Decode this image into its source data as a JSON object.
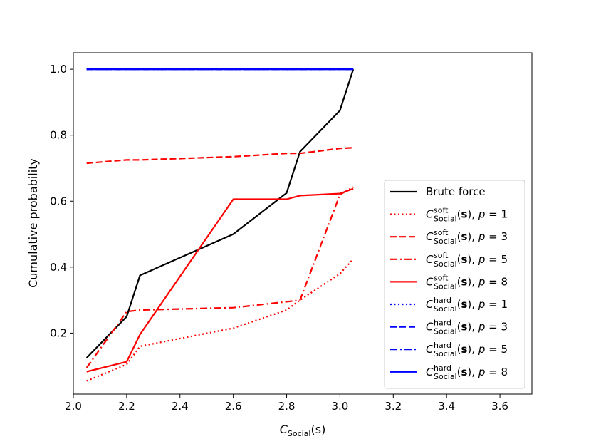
{
  "chart_data": {
    "type": "line",
    "title": "",
    "xlabel": {
      "main": "C",
      "sub": "Social",
      "tail": "(s)"
    },
    "ylabel": "Cumulative probability",
    "xlim": [
      2.0,
      3.72
    ],
    "ylim": [
      0.015,
      1.05
    ],
    "xticks": [
      "2.0",
      "2.2",
      "2.4",
      "2.6",
      "2.8",
      "3.0",
      "3.2",
      "3.4",
      "3.6"
    ],
    "yticks": [
      "0.2",
      "0.4",
      "0.6",
      "0.8",
      "1.0"
    ],
    "grid": false,
    "legend_position": "lower-right",
    "series": [
      {
        "name": "Brute force",
        "color": "#000000",
        "dash": "solid",
        "x": [
          2.05,
          2.2,
          2.25,
          2.6,
          2.8,
          2.85,
          3.0,
          3.05
        ],
        "y": [
          0.125,
          0.25,
          0.375,
          0.5,
          0.625,
          0.75,
          0.875,
          1.0
        ]
      },
      {
        "name": "soft",
        "p": "1",
        "color": "#ff0000",
        "dash": "dotted",
        "x": [
          2.05,
          2.2,
          2.25,
          2.6,
          2.8,
          2.85,
          3.0,
          3.05
        ],
        "y": [
          0.055,
          0.105,
          0.16,
          0.215,
          0.27,
          0.3,
          0.38,
          0.425
        ]
      },
      {
        "name": "soft",
        "p": "3",
        "color": "#ff0000",
        "dash": "dashed",
        "x": [
          2.05,
          2.2,
          2.25,
          2.6,
          2.8,
          2.85,
          3.0,
          3.05
        ],
        "y": [
          0.715,
          0.725,
          0.725,
          0.735,
          0.745,
          0.745,
          0.76,
          0.762
        ]
      },
      {
        "name": "soft",
        "p": "5",
        "color": "#ff0000",
        "dash": "dashdot",
        "x": [
          2.05,
          2.2,
          2.25,
          2.6,
          2.8,
          2.85,
          3.0,
          3.05
        ],
        "y": [
          0.095,
          0.265,
          0.27,
          0.277,
          0.295,
          0.3,
          0.62,
          0.643
        ]
      },
      {
        "name": "soft",
        "p": "8",
        "color": "#ff0000",
        "dash": "solid",
        "x": [
          2.05,
          2.2,
          2.25,
          2.6,
          2.8,
          2.85,
          3.0,
          3.05
        ],
        "y": [
          0.083,
          0.113,
          0.196,
          0.606,
          0.606,
          0.617,
          0.623,
          0.638
        ]
      },
      {
        "name": "hard",
        "p": "1",
        "color": "#0000ff",
        "dash": "dotted",
        "x": [
          2.05,
          3.05
        ],
        "y": [
          1.0,
          1.0
        ]
      },
      {
        "name": "hard",
        "p": "3",
        "color": "#0000ff",
        "dash": "dashed",
        "x": [
          2.05,
          3.05
        ],
        "y": [
          1.0,
          1.0
        ]
      },
      {
        "name": "hard",
        "p": "5",
        "color": "#0000ff",
        "dash": "dashdot",
        "x": [
          2.05,
          3.05
        ],
        "y": [
          1.0,
          1.0
        ]
      },
      {
        "name": "hard",
        "p": "8",
        "color": "#0000ff",
        "dash": "solid",
        "x": [
          2.05,
          3.05
        ],
        "y": [
          1.0,
          1.0
        ]
      }
    ],
    "legend_labels": {
      "c": "C",
      "sub": "Social",
      "bold": "s",
      "p": "p",
      "eq": " = "
    }
  }
}
